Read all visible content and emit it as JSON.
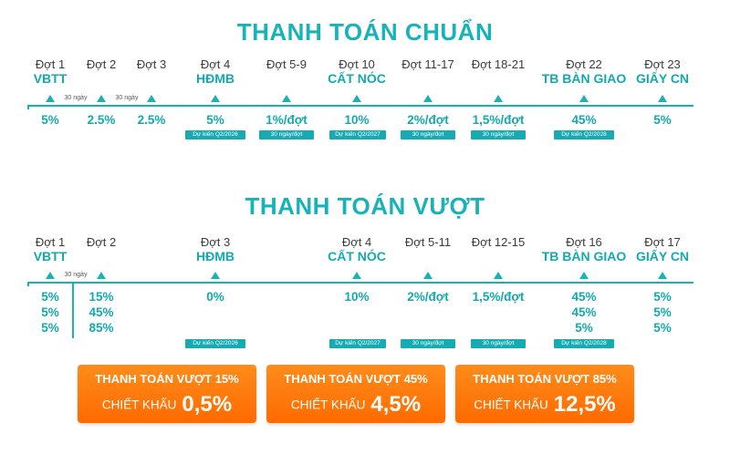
{
  "section1": {
    "title": "THANH TOÁN CHUẨN",
    "milestones": [
      {
        "label": "Đợt 1",
        "sub": "VBTT",
        "value": "5%"
      },
      {
        "label": "Đợt 2",
        "sub": "",
        "value": "2.5%"
      },
      {
        "label": "Đợt 3",
        "sub": "",
        "value": "2.5%"
      },
      {
        "label": "Đợt 4",
        "sub": "HĐMB",
        "value": "5%",
        "tag": "Dự kiến Q2/2026"
      },
      {
        "label": "Đợt 5-9",
        "sub": "",
        "value": "1%/đợt",
        "tag": "30 ngày/đợt"
      },
      {
        "label": "Đợt 10",
        "sub": "CẤT NÓC",
        "value": "10%",
        "tag": "Dự kiến Q2/2027"
      },
      {
        "label": "Đợt 11-17",
        "sub": "",
        "value": "2%/đợt",
        "tag": "30 ngày/đợt"
      },
      {
        "label": "Đợt 18-21",
        "sub": "",
        "value": "1,5%/đợt",
        "tag": "30 ngày/đợt"
      },
      {
        "label": "Đợt 22",
        "sub": "TB BÀN GIAO",
        "value": "45%",
        "tag": "Dự kiến Q2/2028"
      },
      {
        "label": "Đợt 23",
        "sub": "GIẤY CN",
        "value": "5%"
      }
    ],
    "gaps": [
      "30 ngày",
      "30 ngày"
    ]
  },
  "section2": {
    "title": "THANH TOÁN VƯỢT",
    "milestones": [
      {
        "label": "Đợt 1",
        "sub": "VBTT",
        "values": [
          "5%",
          "5%",
          "5%"
        ]
      },
      {
        "label": "Đợt 2",
        "sub": "",
        "values": [
          "15%",
          "45%",
          "85%"
        ]
      },
      {
        "label": "Đợt 3",
        "sub": "HĐMB",
        "values": [
          "0%"
        ],
        "tag": "Dự kiến Q2/2026"
      },
      {
        "label": "Đợt 4",
        "sub": "CẤT NÓC",
        "values": [
          "10%"
        ],
        "tag": "Dự kiến Q2/2027"
      },
      {
        "label": "Đợt 5-11",
        "sub": "",
        "values": [
          "2%/đợt"
        ],
        "tag": "30 ngày/đợt"
      },
      {
        "label": "Đợt 12-15",
        "sub": "",
        "values": [
          "1,5%/đợt"
        ],
        "tag": "30 ngày/đợt"
      },
      {
        "label": "Đợt 16",
        "sub": "TB BÀN GIAO",
        "values": [
          "45%",
          "45%",
          "5%"
        ],
        "tag": "Dự kiến Q2/2028"
      },
      {
        "label": "Đợt 17",
        "sub": "GIẤY CN",
        "values": [
          "5%",
          "5%",
          "5%"
        ]
      }
    ],
    "gaps": [
      "30 ngày"
    ]
  },
  "cards": [
    {
      "title": "THANH TOÁN VƯỢT 15%",
      "label": "CHIẾT KHẤU",
      "value": "0,5%"
    },
    {
      "title": "THANH TOÁN VƯỢT 45%",
      "label": "CHIẾT KHẤU",
      "value": "4,5%"
    },
    {
      "title": "THANH TOÁN VƯỢT 85%",
      "label": "CHIẾT KHẤU",
      "value": "12,5%"
    }
  ],
  "colors": {
    "accent": "#17b3b8",
    "card": "#ff7a0f"
  }
}
